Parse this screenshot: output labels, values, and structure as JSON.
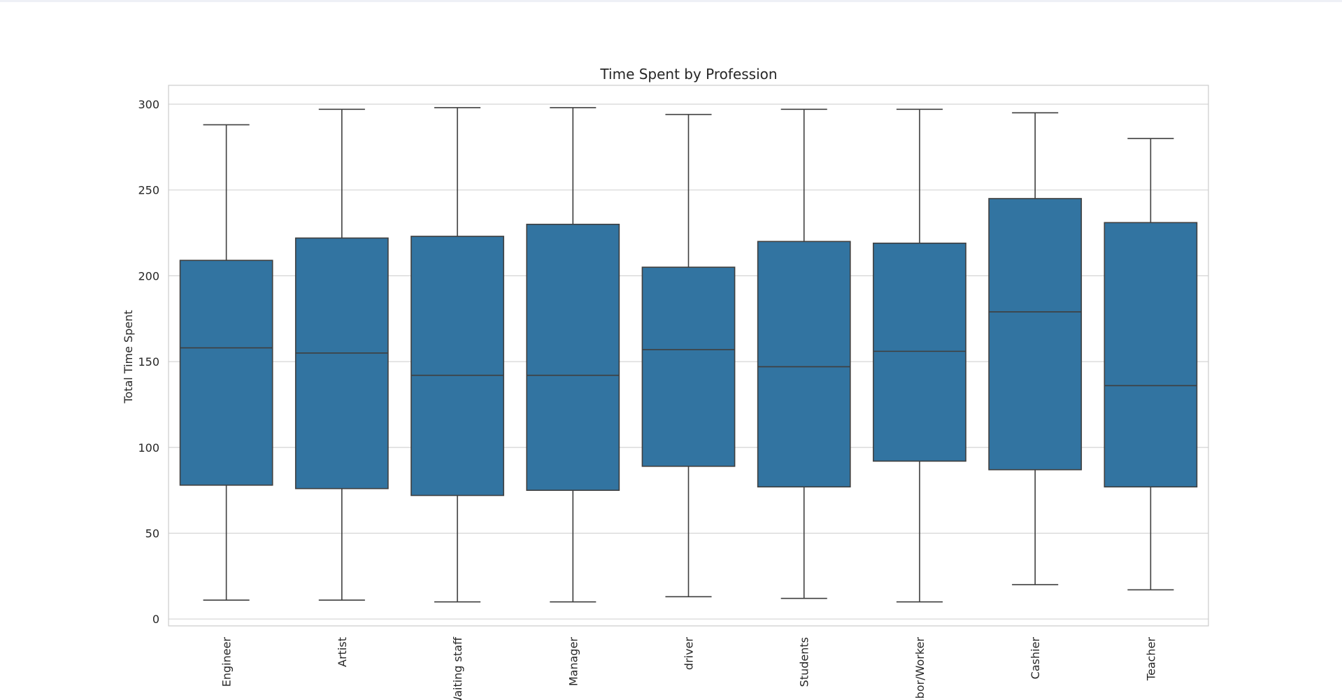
{
  "chart_data": {
    "type": "box",
    "title": "Time Spent by Profession",
    "xlabel": "",
    "ylabel": "Total Time Spent",
    "ylim": [
      -4,
      311
    ],
    "yticks": [
      0,
      50,
      100,
      150,
      200,
      250,
      300
    ],
    "grid": "horizontal",
    "color": "#3274a1",
    "edge_color": "#3f3f3f",
    "categories": [
      "Engineer",
      "Artist",
      "Waiting staff",
      "Manager",
      "driver",
      "Students",
      "Labor/Worker",
      "Cashier",
      "Teacher"
    ],
    "boxes": [
      {
        "min": 11,
        "q1": 78,
        "median": 158,
        "q3": 209,
        "max": 288
      },
      {
        "min": 11,
        "q1": 76,
        "median": 155,
        "q3": 222,
        "max": 297
      },
      {
        "min": 10,
        "q1": 72,
        "median": 142,
        "q3": 223,
        "max": 298
      },
      {
        "min": 10,
        "q1": 75,
        "median": 142,
        "q3": 230,
        "max": 298
      },
      {
        "min": 13,
        "q1": 89,
        "median": 157,
        "q3": 205,
        "max": 294
      },
      {
        "min": 12,
        "q1": 77,
        "median": 147,
        "q3": 220,
        "max": 297
      },
      {
        "min": 10,
        "q1": 92,
        "median": 156,
        "q3": 219,
        "max": 297
      },
      {
        "min": 20,
        "q1": 87,
        "median": 179,
        "q3": 245,
        "max": 295
      },
      {
        "min": 17,
        "q1": 77,
        "median": 136,
        "q3": 231,
        "max": 280
      }
    ]
  }
}
